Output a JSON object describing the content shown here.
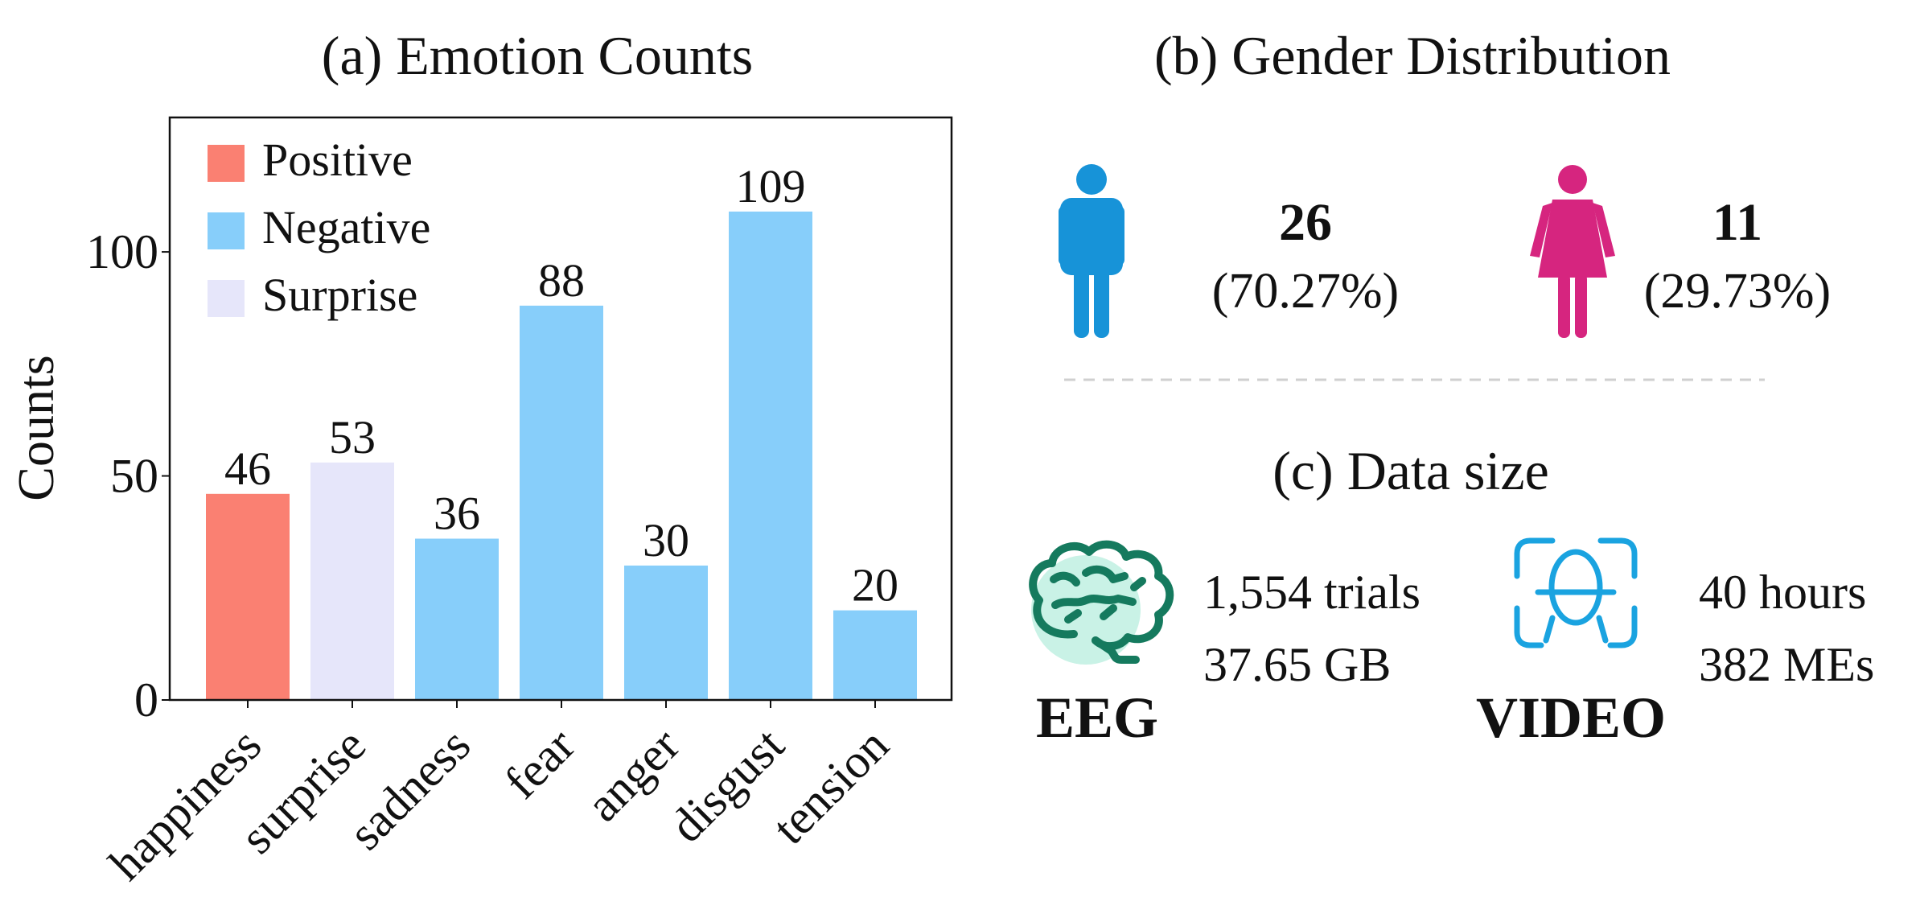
{
  "colors": {
    "positive": "#fa8072",
    "negative": "#87cefa",
    "surprise": "#e6e6fa",
    "male": "#1793d8",
    "female": "#d6257f",
    "eeg_icon": "#157a5e",
    "eeg_fill": "#c9f2e6",
    "video_icon": "#1aa3e0",
    "divider": "#d0d0d0"
  },
  "chart_data": {
    "type": "bar",
    "title": "(a) Emotion Counts",
    "xlabel": "",
    "ylabel": "Counts",
    "categories": [
      "happiness",
      "surprise",
      "sadness",
      "fear",
      "anger",
      "disgust",
      "tension"
    ],
    "values": [
      46,
      53,
      36,
      88,
      30,
      109,
      20
    ],
    "groups": [
      "positive",
      "surprise",
      "negative",
      "negative",
      "negative",
      "negative",
      "negative"
    ],
    "ylim": [
      0,
      130
    ],
    "yticks": [
      0,
      50,
      100
    ],
    "legend": {
      "placement": "top-left",
      "entries": [
        {
          "key": "positive",
          "label": "Positive"
        },
        {
          "key": "negative",
          "label": "Negative"
        },
        {
          "key": "surprise",
          "label": "Surprise"
        }
      ]
    },
    "grid": false
  },
  "gender": {
    "title": "(b) Gender Distribution",
    "male": {
      "count": "26",
      "percent": "(70.27%)",
      "icon": "male-person-icon"
    },
    "female": {
      "count": "11",
      "percent": "(29.73%)",
      "icon": "female-person-icon"
    }
  },
  "datasize": {
    "title": "(c) Data size",
    "eeg": {
      "label": "EEG",
      "line1": "1,554 trials",
      "line2": "37.65 GB",
      "icon": "brain-icon"
    },
    "video": {
      "label": "VIDEO",
      "line1": "40 hours",
      "line2": "382 MEs",
      "icon": "face-scan-icon"
    }
  }
}
